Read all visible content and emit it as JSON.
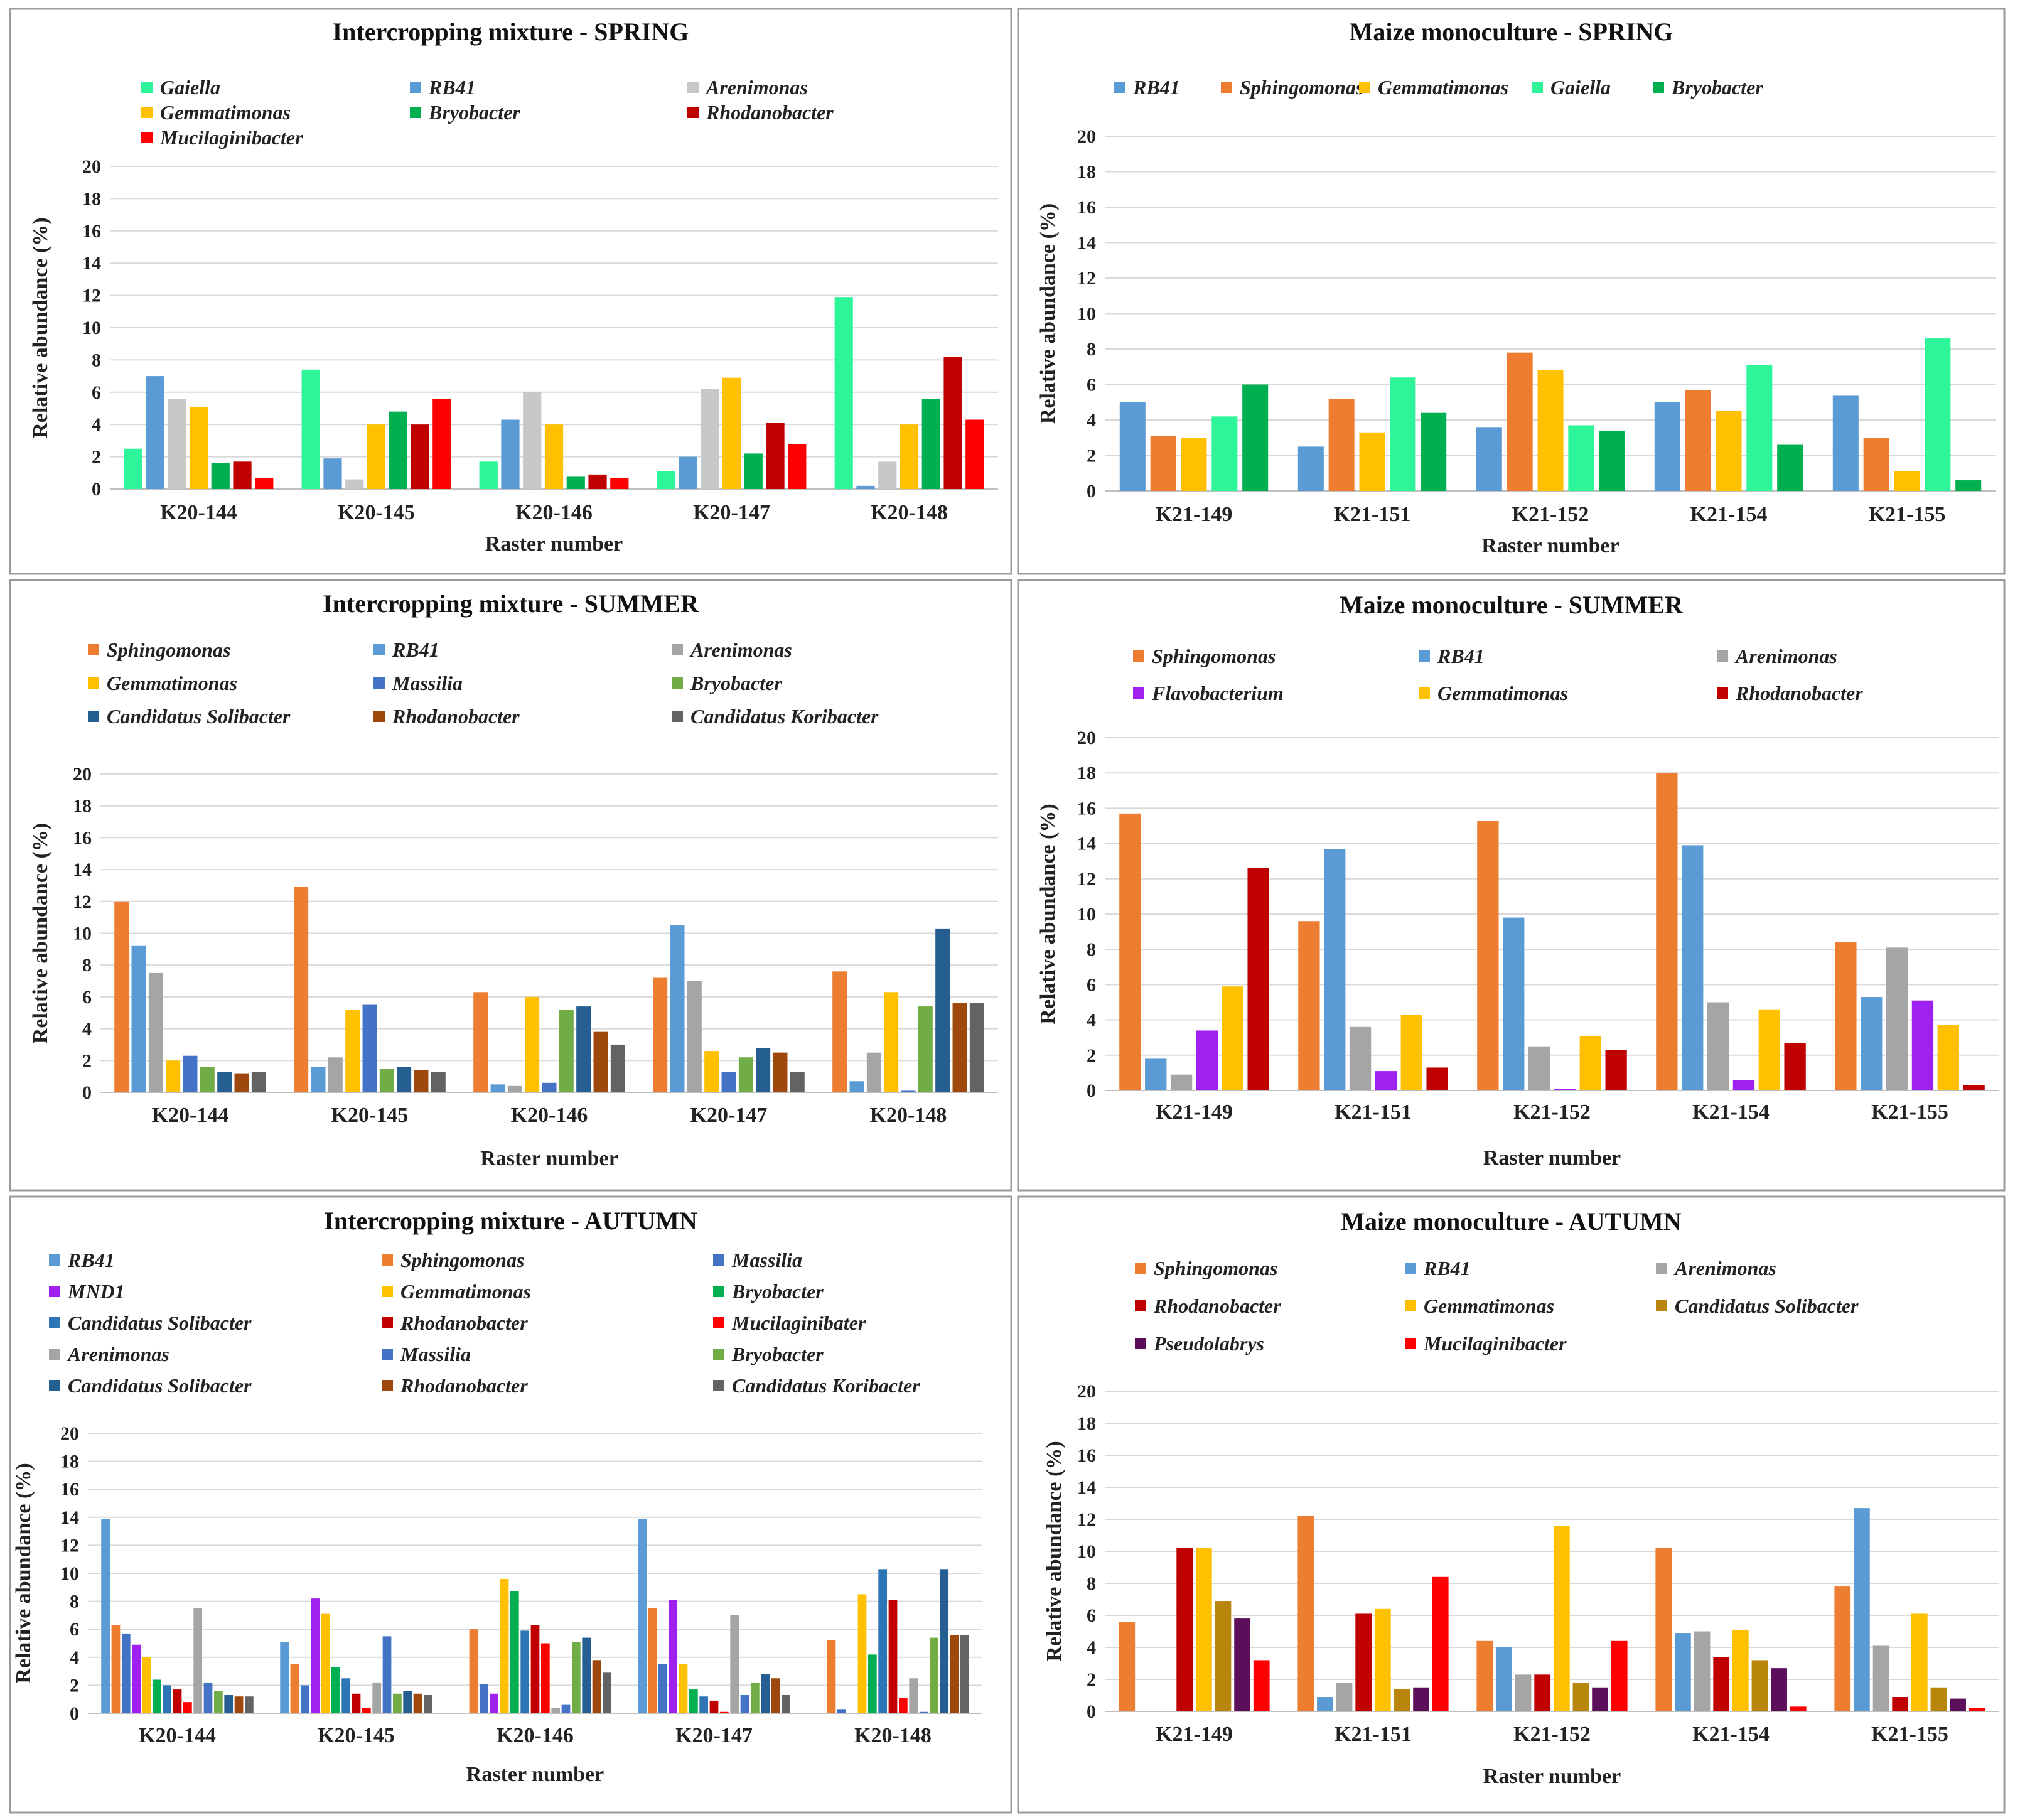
{
  "palette": {
    "Gaiella": "#2ef59a",
    "RB41": "#5b9bd5",
    "Arenimonas": "#c8c8c8",
    "Gemmatimonas": "#ffc000",
    "Bryobacter": "#00b050",
    "Rhodanobacter": "#c00000",
    "Mucilaginibacter": "#ff0000",
    "Mucilaginibater": "#ff0000",
    "Sphingomonas": "#ed7d31",
    "Arenimonas2": "#a5a5a5",
    "Massilia": "#4472c4",
    "Bryobacter2": "#70ad47",
    "Candidatus Solibacter": "#255e91",
    "Rhodanobacter2": "#9e480e",
    "Candidatus Koribacter": "#636363",
    "Flavobacterium": "#a020f0",
    "MND1": "#a020f0",
    "Candidatus Solibacter2": "#b8860b",
    "Pseudolabrys": "#5b0f5b"
  },
  "chart_data": [
    {
      "type": "bar",
      "title": "Intercropping mixture - SPRING",
      "xlabel": "Raster number",
      "ylabel": "Relative abundance (%)",
      "ylim": [
        0,
        20
      ],
      "yticks": [
        "0",
        "2",
        "4",
        "6",
        "8",
        "10",
        "12",
        "14",
        "16",
        "18",
        "20"
      ],
      "legend_cols": 3,
      "categories": [
        "K20-144",
        "K20-145",
        "K20-146",
        "K20-147",
        "K20-148"
      ],
      "series": [
        {
          "name": "Gaiella",
          "color": "#2ef59a",
          "values": [
            2.5,
            7.4,
            1.7,
            1.1,
            11.9
          ]
        },
        {
          "name": "RB41",
          "color": "#5b9bd5",
          "values": [
            7.0,
            1.9,
            4.3,
            2.0,
            0.2
          ]
        },
        {
          "name": "Arenimonas",
          "color": "#c8c8c8",
          "values": [
            5.6,
            0.6,
            6.0,
            6.2,
            1.7
          ]
        },
        {
          "name": "Gemmatimonas",
          "color": "#ffc000",
          "values": [
            5.1,
            4.0,
            4.0,
            6.9,
            4.0
          ]
        },
        {
          "name": "Bryobacter",
          "color": "#00b050",
          "values": [
            1.6,
            4.8,
            0.8,
            2.2,
            5.6
          ]
        },
        {
          "name": "Rhodanobacter",
          "color": "#c00000",
          "values": [
            1.7,
            4.0,
            0.9,
            4.1,
            8.2
          ]
        },
        {
          "name": "Mucilaginibacter",
          "color": "#ff0000",
          "values": [
            0.7,
            5.6,
            0.7,
            2.8,
            4.3
          ]
        }
      ]
    },
    {
      "type": "bar",
      "title": "Maize monoculture - SPRING",
      "xlabel": "Raster number",
      "ylabel": "Relative abundance (%)",
      "ylim": [
        0,
        20
      ],
      "yticks": [
        "0",
        "2",
        "4",
        "6",
        "8",
        "10",
        "12",
        "14",
        "16",
        "18",
        "20"
      ],
      "legend_cols": 5,
      "categories": [
        "K21-149",
        "K21-151",
        "K21-152",
        "K21-154",
        "K21-155"
      ],
      "series": [
        {
          "name": "RB41",
          "color": "#5b9bd5",
          "values": [
            5.0,
            2.5,
            3.6,
            5.0,
            5.4
          ]
        },
        {
          "name": "Sphingomonas",
          "color": "#ed7d31",
          "values": [
            3.1,
            5.2,
            7.8,
            5.7,
            3.0
          ]
        },
        {
          "name": "Gemmatimonas",
          "color": "#ffc000",
          "values": [
            3.0,
            3.3,
            6.8,
            4.5,
            1.1
          ]
        },
        {
          "name": "Gaiella",
          "color": "#2ef59a",
          "values": [
            4.2,
            6.4,
            3.7,
            7.1,
            8.6
          ]
        },
        {
          "name": "Bryobacter",
          "color": "#00b050",
          "values": [
            6.0,
            4.4,
            3.4,
            2.6,
            0.6
          ]
        }
      ]
    },
    {
      "type": "bar",
      "title": "Intercropping mixture - SUMMER",
      "xlabel": "Raster number",
      "ylabel": "Relative abundance (%)",
      "ylim": [
        0,
        20
      ],
      "yticks": [
        "0",
        "2",
        "4",
        "6",
        "8",
        "10",
        "12",
        "14",
        "16",
        "18",
        "20"
      ],
      "legend_cols": 3,
      "categories": [
        "K20-144",
        "K20-145",
        "K20-146",
        "K20-147",
        "K20-148"
      ],
      "series": [
        {
          "name": "Sphingomonas",
          "color": "#ed7d31",
          "values": [
            12.0,
            12.9,
            6.3,
            7.2,
            7.6
          ]
        },
        {
          "name": "RB41",
          "color": "#5b9bd5",
          "values": [
            9.2,
            1.6,
            0.5,
            10.5,
            0.7
          ]
        },
        {
          "name": "Arenimonas",
          "color": "#a5a5a5",
          "values": [
            7.5,
            2.2,
            0.4,
            7.0,
            2.5
          ]
        },
        {
          "name": "Gemmatimonas",
          "color": "#ffc000",
          "values": [
            2.0,
            5.2,
            6.0,
            2.6,
            6.3
          ]
        },
        {
          "name": "Massilia",
          "color": "#4472c4",
          "values": [
            2.3,
            5.5,
            0.6,
            1.3,
            0.1
          ]
        },
        {
          "name": "Bryobacter",
          "color": "#70ad47",
          "values": [
            1.6,
            1.5,
            5.2,
            2.2,
            5.4
          ]
        },
        {
          "name": "Candidatus Solibacter",
          "color": "#255e91",
          "values": [
            1.3,
            1.6,
            5.4,
            2.8,
            10.3
          ]
        },
        {
          "name": "Rhodanobacter",
          "color": "#9e480e",
          "values": [
            1.2,
            1.4,
            3.8,
            2.5,
            5.6
          ]
        },
        {
          "name": "Candidatus Koribacter",
          "color": "#636363",
          "values": [
            1.3,
            1.3,
            3.0,
            1.3,
            5.6
          ]
        }
      ]
    },
    {
      "type": "bar",
      "title": "Maize monoculture - SUMMER",
      "xlabel": "Raster number",
      "ylabel": "Relative abundance (%)",
      "ylim": [
        0,
        20
      ],
      "yticks": [
        "0",
        "2",
        "4",
        "6",
        "8",
        "10",
        "12",
        "14",
        "16",
        "18",
        "20"
      ],
      "legend_cols": 3,
      "categories": [
        "K21-149",
        "K21-151",
        "K21-152",
        "K21-154",
        "K21-155"
      ],
      "series": [
        {
          "name": "Sphingomonas",
          "color": "#ed7d31",
          "values": [
            15.7,
            9.6,
            15.3,
            18.0,
            8.4
          ]
        },
        {
          "name": "RB41",
          "color": "#5b9bd5",
          "values": [
            1.8,
            13.7,
            9.8,
            13.9,
            5.3
          ]
        },
        {
          "name": "Arenimonas",
          "color": "#a5a5a5",
          "values": [
            0.9,
            3.6,
            2.5,
            5.0,
            8.1
          ]
        },
        {
          "name": "Flavobacterium",
          "color": "#a020f0",
          "values": [
            3.4,
            1.1,
            0.1,
            0.6,
            5.1
          ]
        },
        {
          "name": "Gemmatimonas",
          "color": "#ffc000",
          "values": [
            5.9,
            4.3,
            3.1,
            4.6,
            3.7
          ]
        },
        {
          "name": "Rhodanobacter",
          "color": "#c00000",
          "values": [
            12.6,
            1.3,
            2.3,
            2.7,
            0.3
          ]
        }
      ]
    },
    {
      "type": "bar",
      "title": "Intercropping mixture - AUTUMN",
      "xlabel": "Raster number",
      "ylabel": "Relative abundance (%)",
      "ylim": [
        0,
        20
      ],
      "yticks": [
        "0",
        "2",
        "4",
        "6",
        "8",
        "10",
        "12",
        "14",
        "16",
        "18",
        "20"
      ],
      "legend_cols": 3,
      "categories": [
        "K20-144",
        "K20-145",
        "K20-146",
        "K20-147",
        "K20-148"
      ],
      "series": [
        {
          "name": "RB41",
          "color": "#5b9bd5",
          "values": [
            13.9,
            5.1,
            0.0,
            13.9,
            0.0
          ]
        },
        {
          "name": "Sphingomonas",
          "color": "#ed7d31",
          "values": [
            6.3,
            3.5,
            6.0,
            7.5,
            5.2
          ]
        },
        {
          "name": "Massilia",
          "color": "#4472c4",
          "values": [
            5.7,
            2.0,
            2.1,
            3.5,
            0.3
          ]
        },
        {
          "name": "MND1",
          "color": "#a020f0",
          "values": [
            4.9,
            8.2,
            1.4,
            8.1,
            0.0
          ]
        },
        {
          "name": "Gemmatimonas",
          "color": "#ffc000",
          "values": [
            4.0,
            7.1,
            9.6,
            3.5,
            8.5
          ]
        },
        {
          "name": "Bryobacter",
          "color": "#00b050",
          "values": [
            2.4,
            3.3,
            8.7,
            1.7,
            4.2
          ]
        },
        {
          "name": "Candidatus Solibacter",
          "color": "#2e75b6",
          "values": [
            2.0,
            2.5,
            5.9,
            1.2,
            10.3
          ]
        },
        {
          "name": "Rhodanobacter",
          "color": "#c00000",
          "values": [
            1.7,
            1.4,
            6.3,
            0.9,
            8.1
          ]
        },
        {
          "name": "Mucilaginibater",
          "color": "#ff0000",
          "values": [
            0.8,
            0.4,
            5.0,
            0.1,
            1.1
          ]
        },
        {
          "name": "Arenimonas",
          "color": "#a5a5a5",
          "values": [
            7.5,
            2.2,
            0.4,
            7.0,
            2.5
          ]
        },
        {
          "name": "Massilia",
          "color": "#4472c4",
          "values": [
            2.2,
            5.5,
            0.6,
            1.3,
            0.1
          ]
        },
        {
          "name": "Bryobacter",
          "color": "#70ad47",
          "values": [
            1.6,
            1.4,
            5.1,
            2.2,
            5.4
          ]
        },
        {
          "name": "Candidatus Solibacter",
          "color": "#255e91",
          "values": [
            1.3,
            1.6,
            5.4,
            2.8,
            10.3
          ]
        },
        {
          "name": "Rhodanobacter",
          "color": "#9e480e",
          "values": [
            1.2,
            1.4,
            3.8,
            2.5,
            5.6
          ]
        },
        {
          "name": "Candidatus Koribacter",
          "color": "#636363",
          "values": [
            1.2,
            1.3,
            2.9,
            1.3,
            5.6
          ]
        }
      ]
    },
    {
      "type": "bar",
      "title": "Maize monoculture - AUTUMN",
      "xlabel": "Raster number",
      "ylabel": "Relative abundance (%)",
      "ylim": [
        0,
        20
      ],
      "yticks": [
        "0",
        "2",
        "4",
        "6",
        "8",
        "10",
        "12",
        "14",
        "16",
        "18",
        "20"
      ],
      "legend_cols": 3,
      "categories": [
        "K21-149",
        "K21-151",
        "K21-152",
        "K21-154",
        "K21-155"
      ],
      "series": [
        {
          "name": "Sphingomonas",
          "color": "#ed7d31",
          "values": [
            5.6,
            12.2,
            4.4,
            10.2,
            7.8
          ]
        },
        {
          "name": "RB41",
          "color": "#5b9bd5",
          "values": [
            0.0,
            0.9,
            4.0,
            4.9,
            12.7
          ]
        },
        {
          "name": "Arenimonas",
          "color": "#a5a5a5",
          "values": [
            0.0,
            1.8,
            2.3,
            5.0,
            4.1
          ]
        },
        {
          "name": "Rhodanobacter",
          "color": "#c00000",
          "values": [
            10.2,
            6.1,
            2.3,
            3.4,
            0.9
          ]
        },
        {
          "name": "Gemmatimonas",
          "color": "#ffc000",
          "values": [
            10.2,
            6.4,
            11.6,
            5.1,
            6.1
          ]
        },
        {
          "name": "Candidatus Solibacter",
          "color": "#b8860b",
          "values": [
            6.9,
            1.4,
            1.8,
            3.2,
            1.5
          ]
        },
        {
          "name": "Pseudolabrys",
          "color": "#5b0f5b",
          "values": [
            5.8,
            1.5,
            1.5,
            2.7,
            0.8
          ]
        },
        {
          "name": "Mucilaginibacter",
          "color": "#ff0000",
          "values": [
            3.2,
            8.4,
            4.4,
            0.3,
            0.2
          ]
        }
      ]
    }
  ]
}
